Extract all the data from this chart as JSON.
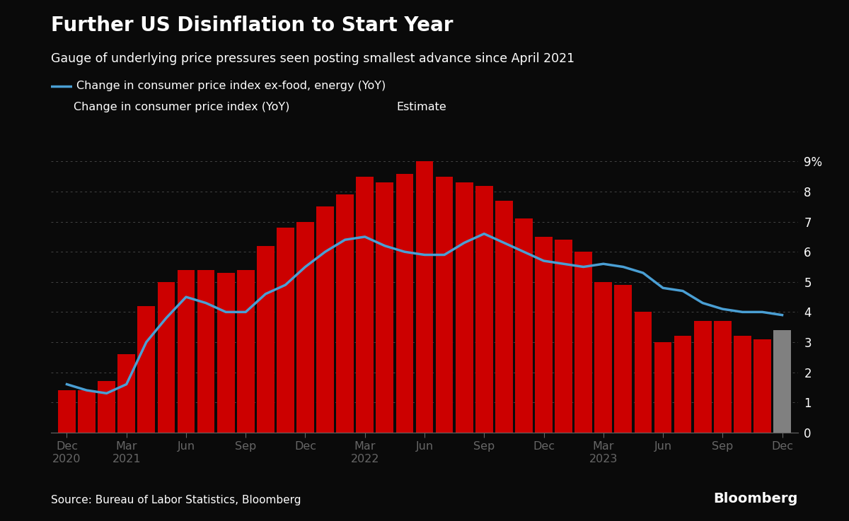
{
  "title": "Further US Disinflation to Start Year",
  "subtitle": "Gauge of underlying price pressures seen posting smallest advance since April 2021",
  "source": "Source: Bureau of Labor Statistics, Bloomberg",
  "background_color": "#0a0a0a",
  "text_color": "#ffffff",
  "bar_color": "#cc0000",
  "estimate_color": "#808080",
  "line_color": "#4a9fd4",
  "legend_line_label": "Change in consumer price index ex-food, energy (YoY)",
  "legend_bar_label": "Change in consumer price index (YoY)",
  "legend_estimate_label": "Estimate",
  "ylim": [
    0,
    9
  ],
  "yticks": [
    0,
    1,
    2,
    3,
    4,
    5,
    6,
    7,
    8,
    9
  ],
  "ytick_labels": [
    "0",
    "1",
    "2",
    "3",
    "4",
    "5",
    "6",
    "7",
    "8",
    "9%"
  ],
  "cpi_yoy": [
    1.4,
    1.4,
    1.7,
    2.6,
    4.2,
    5.0,
    5.4,
    5.4,
    5.3,
    5.4,
    6.2,
    6.8,
    7.0,
    7.5,
    7.9,
    8.5,
    8.3,
    8.6,
    9.1,
    8.5,
    8.3,
    8.2,
    7.7,
    7.1,
    6.5,
    6.4,
    6.0,
    5.0,
    4.9,
    4.0,
    3.0,
    3.2,
    3.7,
    3.7,
    3.2,
    3.1,
    3.4
  ],
  "cpi_core_yoy": [
    1.6,
    1.4,
    1.3,
    1.6,
    3.0,
    3.8,
    4.5,
    4.3,
    4.0,
    4.0,
    4.6,
    4.9,
    5.5,
    6.0,
    6.4,
    6.5,
    6.2,
    6.0,
    5.9,
    5.9,
    6.3,
    6.6,
    6.3,
    6.0,
    5.7,
    5.6,
    5.5,
    5.6,
    5.5,
    5.3,
    4.8,
    4.7,
    4.3,
    4.1,
    4.0,
    4.0,
    3.9
  ],
  "is_estimate": [
    false,
    false,
    false,
    false,
    false,
    false,
    false,
    false,
    false,
    false,
    false,
    false,
    false,
    false,
    false,
    false,
    false,
    false,
    false,
    false,
    false,
    false,
    false,
    false,
    false,
    false,
    false,
    false,
    false,
    false,
    false,
    false,
    false,
    false,
    false,
    false,
    true
  ],
  "x_tick_positions": [
    0,
    3,
    6,
    9,
    12,
    15,
    18,
    21,
    24,
    27,
    30,
    33,
    36
  ],
  "x_tick_labels": [
    "Dec\n2020",
    "Mar\n2021",
    "Jun",
    "Sep",
    "Dec",
    "Mar\n2022",
    "Jun",
    "Sep",
    "Dec",
    "Mar\n2023",
    "Jun",
    "Sep",
    "Dec"
  ]
}
